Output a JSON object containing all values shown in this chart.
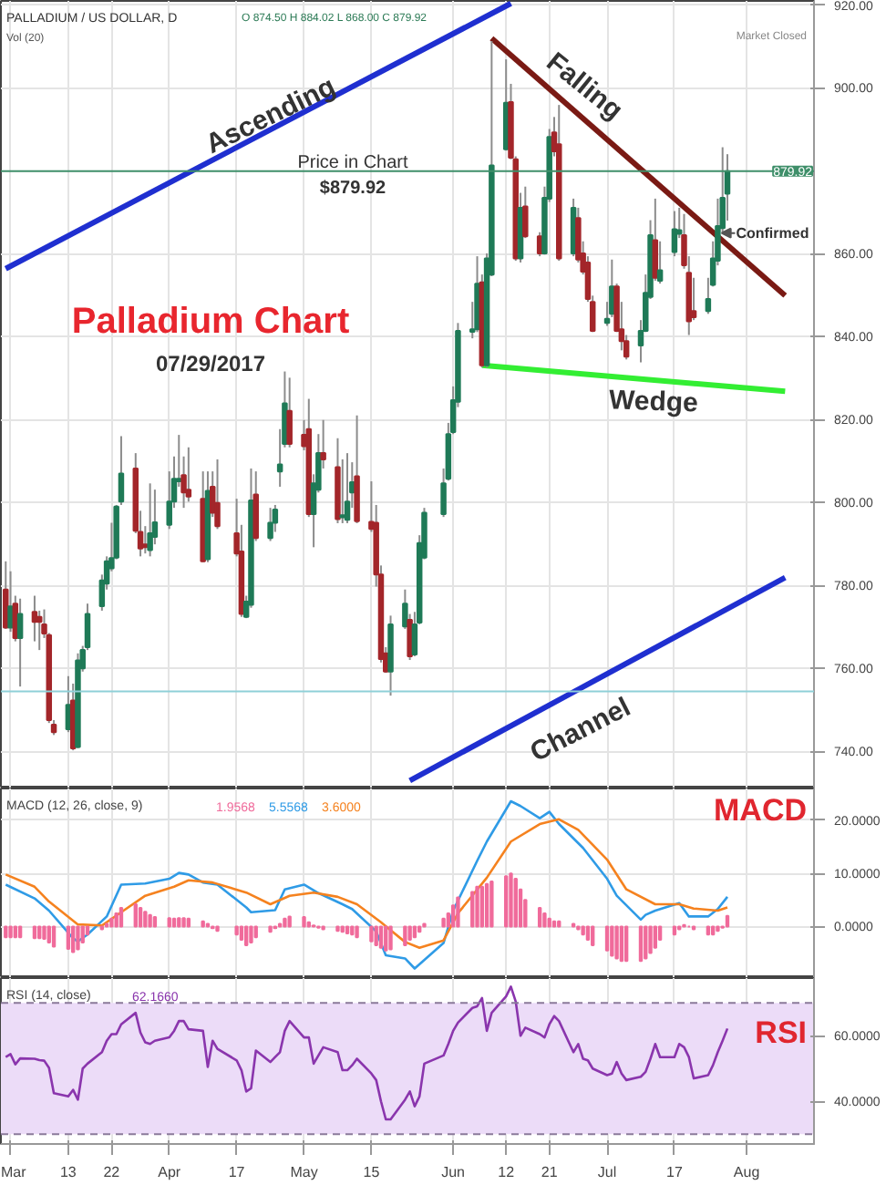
{
  "chart_data": [
    {
      "type": "candlestick",
      "title": "Palladium Chart",
      "subtitle": "07/29/2017",
      "x": [
        "2017-02-28",
        "2017-03-01",
        "2017-03-02",
        "2017-03-03",
        "2017-03-06",
        "2017-03-07",
        "2017-03-08",
        "2017-03-09",
        "2017-03-10",
        "2017-03-13",
        "2017-03-14",
        "2017-03-15",
        "2017-03-16",
        "2017-03-17",
        "2017-03-20",
        "2017-03-21",
        "2017-03-22",
        "2017-03-23",
        "2017-03-24",
        "2017-03-27",
        "2017-03-28",
        "2017-03-29",
        "2017-03-30",
        "2017-03-31",
        "2017-04-03",
        "2017-04-04",
        "2017-04-05",
        "2017-04-06",
        "2017-04-07",
        "2017-04-10",
        "2017-04-11",
        "2017-04-12",
        "2017-04-13",
        "2017-04-17",
        "2017-04-18",
        "2017-04-19",
        "2017-04-20",
        "2017-04-21",
        "2017-04-24",
        "2017-04-25",
        "2017-04-26",
        "2017-04-27",
        "2017-04-28",
        "2017-05-01",
        "2017-05-02",
        "2017-05-03",
        "2017-05-04",
        "2017-05-05",
        "2017-05-08",
        "2017-05-09",
        "2017-05-10",
        "2017-05-11",
        "2017-05-12",
        "2017-05-15",
        "2017-05-16",
        "2017-05-17",
        "2017-05-18",
        "2017-05-19",
        "2017-05-22",
        "2017-05-23",
        "2017-05-24",
        "2017-05-25",
        "2017-05-26",
        "2017-05-30",
        "2017-05-31",
        "2017-06-01",
        "2017-06-02",
        "2017-06-05",
        "2017-06-06",
        "2017-06-07",
        "2017-06-08",
        "2017-06-09",
        "2017-06-12",
        "2017-06-13",
        "2017-06-14",
        "2017-06-15",
        "2017-06-16",
        "2017-06-19",
        "2017-06-20",
        "2017-06-21",
        "2017-06-22",
        "2017-06-23",
        "2017-06-26",
        "2017-06-27",
        "2017-06-28",
        "2017-06-29",
        "2017-06-30",
        "2017-07-03",
        "2017-07-04",
        "2017-07-05",
        "2017-07-06",
        "2017-07-07",
        "2017-07-10",
        "2017-07-11",
        "2017-07-12",
        "2017-07-13",
        "2017-07-14",
        "2017-07-17",
        "2017-07-18",
        "2017-07-19",
        "2017-07-20",
        "2017-07-21",
        "2017-07-24",
        "2017-07-25",
        "2017-07-26",
        "2017-07-27",
        "2017-07-28"
      ],
      "ohlc": [
        [
          779.0,
          785.8,
          769.5,
          769.8
        ],
        [
          769.8,
          783.4,
          768.8,
          774.9
        ],
        [
          775.6,
          777.5,
          766.5,
          767.3
        ],
        [
          767.3,
          776.8,
          755.6,
          773.1
        ],
        [
          773.6,
          777.5,
          766.5,
          771.2
        ],
        [
          772.4,
          773.9,
          764.4,
          771.2
        ],
        [
          770.6,
          774.2,
          767.3,
          768.4
        ],
        [
          768.0,
          768.5,
          746.8,
          747.5
        ],
        [
          746.4,
          747.5,
          743.9,
          744.6
        ],
        [
          745.3,
          758.1,
          744.6,
          751.2
        ],
        [
          752.2,
          756.3,
          740.2,
          740.7
        ],
        [
          741.0,
          763.6,
          740.7,
          761.9
        ],
        [
          760.0,
          765.4,
          759.2,
          764.4
        ],
        [
          765.1,
          775.6,
          764.4,
          773.1
        ],
        [
          775.0,
          782.6,
          773.9,
          781.2
        ],
        [
          780.4,
          787.0,
          779.0,
          785.8
        ],
        [
          784.1,
          795.1,
          783.4,
          786.6
        ],
        [
          786.7,
          799.4,
          786.3,
          799.0
        ],
        [
          800.2,
          816.0,
          799.4,
          807.0
        ],
        [
          808.2,
          811.9,
          792.6,
          793.2
        ],
        [
          792.9,
          798.0,
          787.0,
          788.9
        ],
        [
          789.9,
          794.3,
          787.7,
          789.2
        ],
        [
          788.5,
          804.6,
          787.0,
          792.6
        ],
        [
          791.7,
          803.1,
          789.9,
          795.2
        ],
        [
          794.6,
          807.5,
          793.6,
          800.2
        ],
        [
          800.2,
          811.1,
          798.7,
          805.7
        ],
        [
          805.1,
          816.3,
          803.8,
          805.7
        ],
        [
          806.6,
          811.1,
          798.7,
          802.4
        ],
        [
          803.1,
          813.3,
          800.2,
          801.4
        ],
        [
          800.9,
          807.5,
          785.6,
          785.8
        ],
        [
          786.3,
          807.5,
          785.6,
          802.8
        ],
        [
          803.8,
          807.5,
          796.5,
          797.5
        ],
        [
          799.9,
          810.4,
          793.6,
          794.3
        ],
        [
          792.6,
          800.9,
          787.0,
          787.7
        ],
        [
          788.2,
          794.6,
          772.4,
          773.1
        ],
        [
          772.4,
          777.5,
          772.1,
          776.1
        ],
        [
          775.3,
          808.2,
          774.6,
          800.5
        ],
        [
          801.9,
          807.5,
          790.7,
          791.4
        ],
        [
          791.4,
          798.7,
          790.7,
          795.1
        ],
        [
          795.1,
          799.4,
          792.9,
          798.3
        ],
        [
          807.5,
          817.7,
          803.8,
          809.2
        ],
        [
          814.1,
          831.6,
          813.3,
          823.9
        ],
        [
          822.1,
          830.1,
          813.3,
          814.1
        ],
        [
          816.3,
          819.9,
          812.6,
          813.6
        ],
        [
          817.7,
          825.0,
          796.5,
          797.2
        ],
        [
          797.2,
          806.8,
          789.2,
          804.6
        ],
        [
          803.1,
          816.5,
          802.4,
          811.9
        ],
        [
          811.9,
          819.9,
          808.2,
          810.4
        ],
        [
          808.5,
          815.5,
          795.0,
          796.0
        ],
        [
          796.4,
          810.4,
          795.0,
          796.9
        ],
        [
          795.8,
          811.9,
          795.0,
          800.2
        ],
        [
          802.4,
          809.7,
          798.7,
          804.9
        ],
        [
          806.3,
          821.0,
          795.0,
          795.5
        ],
        [
          795.3,
          805.1,
          792.9,
          793.6
        ],
        [
          795.1,
          799.4,
          779.7,
          782.6
        ],
        [
          782.6,
          784.8,
          761.4,
          762.2
        ],
        [
          763.6,
          765.1,
          758.9,
          759.2
        ],
        [
          759.2,
          772.7,
          753.4,
          770.6
        ],
        [
          770.1,
          779.0,
          769.5,
          775.6
        ],
        [
          771.7,
          773.1,
          762.0,
          762.9
        ],
        [
          763.3,
          773.6,
          762.9,
          770.6
        ],
        [
          771.0,
          792.1,
          770.6,
          790.2
        ],
        [
          786.7,
          798.7,
          786.3,
          797.5
        ],
        [
          797.2,
          808.2,
          796.5,
          804.6
        ],
        [
          805.7,
          819.2,
          805.3,
          816.5
        ],
        [
          817.0,
          828.0,
          816.5,
          824.7
        ],
        [
          824.3,
          843.3,
          823.0,
          841.4
        ],
        [
          841.2,
          848.4,
          839.6,
          841.8
        ],
        [
          841.8,
          859.4,
          841.1,
          852.8
        ],
        [
          853.1,
          855.0,
          832.6,
          833.1
        ],
        [
          833.1,
          860.1,
          832.6,
          858.9
        ],
        [
          855.0,
          911.3,
          854.6,
          881.3
        ],
        [
          885.2,
          906.9,
          884.9,
          896.4
        ],
        [
          896.6,
          901.0,
          882.8,
          883.2
        ],
        [
          882.8,
          883.5,
          858.3,
          858.9
        ],
        [
          858.9,
          874.7,
          857.9,
          871.1
        ],
        [
          871.4,
          876.2,
          863.8,
          864.2
        ],
        [
          864.2,
          865.2,
          859.4,
          860.1
        ],
        [
          860.1,
          876.2,
          859.8,
          873.5
        ],
        [
          873.3,
          890.1,
          872.5,
          888.2
        ],
        [
          889.3,
          893.0,
          883.5,
          884.7
        ],
        [
          886.4,
          895.9,
          858.3,
          858.9
        ],
        [
          860.1,
          873.3,
          859.4,
          871.1
        ],
        [
          868.6,
          871.1,
          857.9,
          858.6
        ],
        [
          860.1,
          863.0,
          855.0,
          855.7
        ],
        [
          857.9,
          859.4,
          848.4,
          849.1
        ],
        [
          848.4,
          849.9,
          841.1,
          841.4
        ],
        [
          843.3,
          848.4,
          842.6,
          844.3
        ],
        [
          845.5,
          858.6,
          844.7,
          852.1
        ],
        [
          852.1,
          852.8,
          841.1,
          841.4
        ],
        [
          841.8,
          848.4,
          836.7,
          838.9
        ],
        [
          838.9,
          840.4,
          834.5,
          835.2
        ],
        [
          837.9,
          844.0,
          833.8,
          841.4
        ],
        [
          841.4,
          855.0,
          841.1,
          850.6
        ],
        [
          849.6,
          868.1,
          849.1,
          864.5
        ],
        [
          863.3,
          873.3,
          853.5,
          854.2
        ],
        [
          853.5,
          863.0,
          852.8,
          856.0
        ],
        [
          860.4,
          870.3,
          859.4,
          865.9
        ],
        [
          864.8,
          871.1,
          863.8,
          865.7
        ],
        [
          864.5,
          869.6,
          856.4,
          857.2
        ],
        [
          855.4,
          859.4,
          840.4,
          843.7
        ],
        [
          846.2,
          854.2,
          844.0,
          844.7
        ],
        [
          846.2,
          854.2,
          845.5,
          849.1
        ],
        [
          852.5,
          863.0,
          852.1,
          858.9
        ],
        [
          858.3,
          873.3,
          857.2,
          866.7
        ],
        [
          866.2,
          885.7,
          865.2,
          873.5
        ],
        [
          874.5,
          884.02,
          868.0,
          879.92
        ]
      ],
      "series": [
        {
          "type": "line",
          "color": "#1f2fd0",
          "x": [
            "2017-02-28",
            "2017-06-13"
          ],
          "values": [
            856.4,
            920.4
          ]
        },
        {
          "type": "line",
          "color": "#7a1a14",
          "x": [
            "2017-06-09",
            "2017-08-09"
          ],
          "values": [
            912,
            849.9
          ]
        },
        {
          "type": "line",
          "color": "#33ee33",
          "x": [
            "2017-06-07",
            "2017-08-09"
          ],
          "values": [
            833.1,
            826.8
          ]
        },
        {
          "type": "line",
          "color": "#1f2fd0",
          "x": [
            "2017-05-23",
            "2017-08-09"
          ],
          "values": [
            732.9,
            781.9
          ]
        }
      ],
      "xlim": [
        "2017-02-27",
        "2017-08-15"
      ],
      "xticks": [
        {
          "value": "2017-03-01",
          "label": null
        },
        {
          "value": "2017-03-13",
          "label": null
        },
        {
          "value": "2017-03-22",
          "label": null
        },
        {
          "value": "2017-04-03",
          "label": null
        },
        {
          "value": "2017-04-17",
          "label": null
        },
        {
          "value": "2017-05-01",
          "label": null
        },
        {
          "value": "2017-05-15",
          "label": null
        },
        {
          "value": "2017-06-01",
          "label": null
        },
        {
          "value": "2017-06-12",
          "label": null
        },
        {
          "value": "2017-06-21",
          "label": null
        },
        {
          "value": "2017-07-03",
          "label": null
        },
        {
          "value": "2017-07-17",
          "label": null
        },
        {
          "value": "2017-08-01",
          "label": null
        }
      ],
      "ylim": [
        731,
        921
      ],
      "yticks": [
        {
          "value": 740,
          "label": "740.00"
        },
        {
          "value": 760,
          "label": "760.00"
        },
        {
          "value": 780,
          "label": "780.00"
        },
        {
          "value": 800,
          "label": "800.00"
        },
        {
          "value": 820,
          "label": "820.00"
        },
        {
          "value": 840,
          "label": "840.00"
        },
        {
          "value": 860,
          "label": "860.00"
        },
        {
          "value": 900,
          "label": "900.00"
        },
        {
          "value": 920,
          "label": "920.00"
        }
      ],
      "ref_lines": [
        {
          "axis": "y",
          "value": 879.92,
          "label": "879.92",
          "color": "#3f8f6a"
        },
        {
          "axis": "y",
          "value": 754.4,
          "color": "#8fd0d8"
        }
      ],
      "annotations": [
        "Ascending",
        "Falling",
        "Wedge",
        "Channel",
        "Price in Chart",
        "$879.92",
        {
          "text": "Confirmed",
          "x": "2017-07-26",
          "y": 865
        },
        "PALLADIUM / US DOLLAR, D",
        "O 874.50 H 884.02 L 868.00 C 879.92",
        "Vol (20)",
        "Market Closed"
      ],
      "grid": true,
      "tick_labels": "y"
    },
    {
      "type": "line",
      "x": [
        "2017-02-28",
        "2017-03-01",
        "2017-03-02",
        "2017-03-03",
        "2017-03-06",
        "2017-03-07",
        "2017-03-08",
        "2017-03-09",
        "2017-03-10",
        "2017-03-13",
        "2017-03-14",
        "2017-03-15",
        "2017-03-16",
        "2017-03-17",
        "2017-03-20",
        "2017-03-21",
        "2017-03-22",
        "2017-03-23",
        "2017-03-24",
        "2017-03-27",
        "2017-03-28",
        "2017-03-29",
        "2017-03-30",
        "2017-03-31",
        "2017-04-03",
        "2017-04-04",
        "2017-04-05",
        "2017-04-06",
        "2017-04-07",
        "2017-04-10",
        "2017-04-11",
        "2017-04-12",
        "2017-04-13",
        "2017-04-17",
        "2017-04-18",
        "2017-04-19",
        "2017-04-20",
        "2017-04-21",
        "2017-04-24",
        "2017-04-25",
        "2017-04-26",
        "2017-04-27",
        "2017-04-28",
        "2017-05-01",
        "2017-05-02",
        "2017-05-03",
        "2017-05-04",
        "2017-05-05",
        "2017-05-08",
        "2017-05-09",
        "2017-05-10",
        "2017-05-11",
        "2017-05-12",
        "2017-05-15",
        "2017-05-16",
        "2017-05-17",
        "2017-05-18",
        "2017-05-19",
        "2017-05-22",
        "2017-05-23",
        "2017-05-24",
        "2017-05-25",
        "2017-05-26",
        "2017-05-30",
        "2017-05-31",
        "2017-06-01",
        "2017-06-02",
        "2017-06-05",
        "2017-06-06",
        "2017-06-07",
        "2017-06-08",
        "2017-06-09",
        "2017-06-12",
        "2017-06-13",
        "2017-06-14",
        "2017-06-15",
        "2017-06-16",
        "2017-06-19",
        "2017-06-20",
        "2017-06-21",
        "2017-06-22",
        "2017-06-23",
        "2017-06-26",
        "2017-06-27",
        "2017-06-28",
        "2017-06-29",
        "2017-06-30",
        "2017-07-03",
        "2017-07-04",
        "2017-07-05",
        "2017-07-06",
        "2017-07-07",
        "2017-07-10",
        "2017-07-11",
        "2017-07-12",
        "2017-07-13",
        "2017-07-14",
        "2017-07-17",
        "2017-07-18",
        "2017-07-19",
        "2017-07-20",
        "2017-07-21",
        "2017-07-24",
        "2017-07-25",
        "2017-07-26",
        "2017-07-27",
        "2017-07-28"
      ],
      "series": [
        {
          "type": "bar",
          "name": "1.9568",
          "color": "#f06b9b",
          "values": [
            -2.0,
            -2.0,
            -2.0,
            -2.0,
            -2.2,
            -2.2,
            -2.3,
            -3.0,
            -3.8,
            -4.2,
            -4.8,
            -4.3,
            -3.0,
            -1.5,
            -0.5,
            0.5,
            1.5,
            2.5,
            3.5,
            4.2,
            3.5,
            2.8,
            2.2,
            1.8,
            1.6,
            1.5,
            1.6,
            1.6,
            1.5,
            1.0,
            0.5,
            -0.3,
            -0.8,
            -1.5,
            -2.5,
            -3.5,
            -3.0,
            -2.0,
            -1.0,
            -0.3,
            0.5,
            1.5,
            1.9,
            1.8,
            0.8,
            0.2,
            -0.2,
            -0.5,
            -0.8,
            -1.0,
            -1.3,
            -1.5,
            -2.0,
            -2.8,
            -3.5,
            -4.0,
            -4.5,
            -4.3,
            -3.5,
            -2.5,
            -2.0,
            -1.0,
            0.5,
            1.5,
            2.5,
            4.0,
            5.5,
            6.5,
            7.5,
            7.5,
            8.0,
            8.5,
            9.5,
            10.0,
            9.0,
            7.0,
            5.0,
            3.5,
            2.5,
            1.5,
            1.0,
            1.0,
            0.5,
            -0.5,
            -1.5,
            -2.5,
            -3.5,
            -4.5,
            -5.5,
            -6.0,
            -6.5,
            -6.5,
            -6.5,
            -6.0,
            -5.0,
            -4.0,
            -2.5,
            -1.5,
            -0.5,
            0.3,
            0.0,
            -0.5,
            -1.5,
            -1.5,
            -0.8,
            -0.2,
            2.0
          ]
        },
        {
          "type": "line",
          "name": "5.5568",
          "color": "#2f9be6",
          "x": [
            "2017-02-28",
            "2017-03-06",
            "2017-03-09",
            "2017-03-14",
            "2017-03-15",
            "2017-03-17",
            "2017-03-21",
            "2017-03-24",
            "2017-03-29",
            "2017-04-03",
            "2017-04-05",
            "2017-04-07",
            "2017-04-10",
            "2017-04-13",
            "2017-04-19",
            "2017-04-20",
            "2017-04-25",
            "2017-04-27",
            "2017-05-01",
            "2017-05-04",
            "2017-05-09",
            "2017-05-11",
            "2017-05-16",
            "2017-05-18",
            "2017-05-22",
            "2017-05-24",
            "2017-05-30",
            "2017-06-01",
            "2017-06-06",
            "2017-06-08",
            "2017-06-13",
            "2017-06-15",
            "2017-06-19",
            "2017-06-21",
            "2017-06-23",
            "2017-06-28",
            "2017-07-03",
            "2017-07-05",
            "2017-07-10",
            "2017-07-11",
            "2017-07-13",
            "2017-07-18",
            "2017-07-20",
            "2017-07-24",
            "2017-07-26",
            "2017-07-28"
          ],
          "values": [
            7.9,
            5.3,
            3.0,
            -2.2,
            -2.8,
            -1.5,
            1.9,
            7.9,
            8.1,
            9.0,
            10.1,
            9.8,
            8.3,
            7.9,
            3.6,
            2.7,
            3.1,
            7.0,
            7.9,
            6.3,
            4.2,
            3.3,
            -0.9,
            -5.4,
            -6.0,
            -7.9,
            -3.1,
            3.0,
            12.4,
            16.0,
            23.6,
            22.7,
            20.4,
            21.6,
            19.3,
            14.8,
            9.0,
            5.8,
            1.3,
            2.2,
            3.0,
            4.4,
            1.9,
            1.9,
            3.3,
            5.6
          ]
        },
        {
          "type": "line",
          "name": "3.6000",
          "color": "#f5821f",
          "x": [
            "2017-02-28",
            "2017-03-06",
            "2017-03-09",
            "2017-03-15",
            "2017-03-20",
            "2017-03-24",
            "2017-03-29",
            "2017-04-04",
            "2017-04-07",
            "2017-04-12",
            "2017-04-19",
            "2017-04-24",
            "2017-04-28",
            "2017-05-03",
            "2017-05-08",
            "2017-05-12",
            "2017-05-17",
            "2017-05-22",
            "2017-05-25",
            "2017-05-30",
            "2017-06-02",
            "2017-06-08",
            "2017-06-13",
            "2017-06-19",
            "2017-06-23",
            "2017-06-27",
            "2017-07-03",
            "2017-07-07",
            "2017-07-13",
            "2017-07-18",
            "2017-07-21",
            "2017-07-26",
            "2017-07-28"
          ],
          "values": [
            9.8,
            7.5,
            4.7,
            0.4,
            0.2,
            2.7,
            5.8,
            7.5,
            8.7,
            8.3,
            6.4,
            4.2,
            5.8,
            6.4,
            5.6,
            4.2,
            0.8,
            -2.9,
            -4.0,
            -2.6,
            2.5,
            9.2,
            16.0,
            19.3,
            20.2,
            18.2,
            12.6,
            7.0,
            4.2,
            4.2,
            3.4,
            3.0,
            3.6
          ]
        }
      ],
      "xlim": [
        "2017-02-27",
        "2017-08-15"
      ],
      "xticks": [
        {
          "value": "2017-03-01",
          "label": null
        },
        {
          "value": "2017-03-13",
          "label": null
        },
        {
          "value": "2017-03-22",
          "label": null
        },
        {
          "value": "2017-04-03",
          "label": null
        },
        {
          "value": "2017-04-17",
          "label": null
        },
        {
          "value": "2017-05-01",
          "label": null
        },
        {
          "value": "2017-05-15",
          "label": null
        },
        {
          "value": "2017-06-01",
          "label": null
        },
        {
          "value": "2017-06-12",
          "label": null
        },
        {
          "value": "2017-06-21",
          "label": null
        },
        {
          "value": "2017-07-03",
          "label": null
        },
        {
          "value": "2017-07-17",
          "label": null
        },
        {
          "value": "2017-08-01",
          "label": null
        }
      ],
      "ylim": [
        -9.7,
        26
      ],
      "yticks": [
        {
          "value": 0,
          "label": "0.0000"
        },
        {
          "value": 10,
          "label": "10.0000"
        },
        {
          "value": 20,
          "label": "20.0000"
        }
      ],
      "annotations": [
        "MACD",
        "MACD (12, 26, close, 9)"
      ],
      "legend": "top left",
      "grid": true,
      "tick_labels": "y"
    },
    {
      "type": "line",
      "x": [
        "2017-02-28",
        "2017-03-01",
        "2017-03-02",
        "2017-03-03",
        "2017-03-06",
        "2017-03-07",
        "2017-03-08",
        "2017-03-09",
        "2017-03-10",
        "2017-03-13",
        "2017-03-14",
        "2017-03-15",
        "2017-03-16",
        "2017-03-17",
        "2017-03-20",
        "2017-03-21",
        "2017-03-22",
        "2017-03-23",
        "2017-03-24",
        "2017-03-27",
        "2017-03-28",
        "2017-03-29",
        "2017-03-30",
        "2017-03-31",
        "2017-04-03",
        "2017-04-04",
        "2017-04-05",
        "2017-04-06",
        "2017-04-07",
        "2017-04-10",
        "2017-04-11",
        "2017-04-12",
        "2017-04-13",
        "2017-04-17",
        "2017-04-18",
        "2017-04-19",
        "2017-04-20",
        "2017-04-21",
        "2017-04-24",
        "2017-04-25",
        "2017-04-26",
        "2017-04-27",
        "2017-04-28",
        "2017-05-01",
        "2017-05-02",
        "2017-05-03",
        "2017-05-04",
        "2017-05-05",
        "2017-05-08",
        "2017-05-09",
        "2017-05-10",
        "2017-05-11",
        "2017-05-12",
        "2017-05-15",
        "2017-05-16",
        "2017-05-17",
        "2017-05-18",
        "2017-05-19",
        "2017-05-22",
        "2017-05-23",
        "2017-05-24",
        "2017-05-25",
        "2017-05-26",
        "2017-05-30",
        "2017-05-31",
        "2017-06-01",
        "2017-06-02",
        "2017-06-05",
        "2017-06-06",
        "2017-06-07",
        "2017-06-08",
        "2017-06-09",
        "2017-06-12",
        "2017-06-13",
        "2017-06-14",
        "2017-06-15",
        "2017-06-16",
        "2017-06-19",
        "2017-06-20",
        "2017-06-21",
        "2017-06-22",
        "2017-06-23",
        "2017-06-26",
        "2017-06-27",
        "2017-06-28",
        "2017-06-29",
        "2017-06-30",
        "2017-07-03",
        "2017-07-04",
        "2017-07-05",
        "2017-07-06",
        "2017-07-07",
        "2017-07-10",
        "2017-07-11",
        "2017-07-12",
        "2017-07-13",
        "2017-07-14",
        "2017-07-17",
        "2017-07-18",
        "2017-07-19",
        "2017-07-20",
        "2017-07-21",
        "2017-07-24",
        "2017-07-25",
        "2017-07-26",
        "2017-07-27",
        "2017-07-28"
      ],
      "series": [
        {
          "name": "62.1660",
          "color": "#8a35ad",
          "values": [
            53.5,
            54.4,
            51.3,
            53.1,
            53.0,
            52.6,
            52.4,
            50.2,
            42.5,
            41.5,
            43.5,
            40.5,
            50.0,
            51.5,
            55.0,
            58.5,
            60.5,
            60.5,
            63.5,
            67.0,
            61.0,
            58.0,
            57.5,
            58.5,
            59.5,
            61.5,
            64.5,
            64.5,
            62.0,
            61.5,
            50.5,
            58.5,
            56.0,
            52.5,
            49.5,
            43.0,
            44.0,
            55.5,
            52.0,
            53.5,
            55.0,
            61.5,
            64.5,
            59.5,
            59.5,
            51.5,
            54.0,
            56.5,
            55.0,
            49.5,
            49.5,
            51.0,
            53.0,
            48.5,
            46.5,
            40.0,
            34.5,
            34.5,
            40.5,
            43.0,
            38.5,
            41.5,
            51.5,
            54.0,
            57.5,
            61.5,
            64.0,
            68.5,
            69.0,
            71.5,
            61.5,
            67.0,
            72.0,
            75.0,
            70.5,
            60.0,
            62.5,
            60.5,
            59.5,
            63.5,
            66.0,
            64.5,
            55.0,
            57.5,
            53.0,
            52.5,
            50.0,
            48.0,
            48.5,
            52.0,
            48.5,
            46.5,
            47.5,
            49.0,
            53.0,
            57.5,
            53.5,
            53.5,
            57.5,
            56.5,
            53.5,
            47.0,
            48.0,
            51.0,
            55.0,
            58.5,
            62.2
          ]
        }
      ],
      "xlim": [
        "2017-02-27",
        "2017-08-15"
      ],
      "xticks": [
        {
          "value": "2017-03-01",
          "label": "Mar"
        },
        {
          "value": "2017-03-13",
          "label": "13"
        },
        {
          "value": "2017-03-22",
          "label": "22"
        },
        {
          "value": "2017-04-03",
          "label": "Apr"
        },
        {
          "value": "2017-04-17",
          "label": "17"
        },
        {
          "value": "2017-05-01",
          "label": "May"
        },
        {
          "value": "2017-05-15",
          "label": "15"
        },
        {
          "value": "2017-06-01",
          "label": "Jun"
        },
        {
          "value": "2017-06-12",
          "label": "12"
        },
        {
          "value": "2017-06-21",
          "label": "21"
        },
        {
          "value": "2017-07-03",
          "label": "Jul"
        },
        {
          "value": "2017-07-17",
          "label": "17"
        },
        {
          "value": "2017-08-01",
          "label": "Aug"
        }
      ],
      "ylim": [
        27,
        77.6
      ],
      "yticks": [
        {
          "value": 40,
          "label": "40.0000"
        },
        {
          "value": 60,
          "label": "60.0000"
        }
      ],
      "bands": [
        {
          "axis": "y",
          "from": 30,
          "to": 70,
          "color": "#ecdcf8"
        }
      ],
      "ref_lines": [
        {
          "axis": "y",
          "value": 70,
          "color": "#8a7a9a",
          "line_style": "dashed"
        },
        {
          "axis": "y",
          "value": 30,
          "color": "#8a7a9a",
          "line_style": "dashed"
        }
      ],
      "annotations": [
        "RSI",
        "RSI (14, close)"
      ],
      "legend": "top left",
      "grid": true
    }
  ]
}
